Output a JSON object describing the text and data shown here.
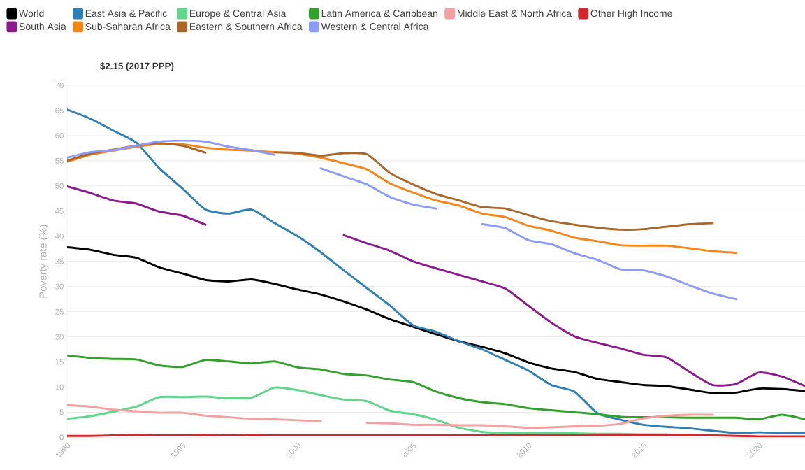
{
  "chart_data": {
    "type": "line",
    "title": "$2.15 (2017 PPP)",
    "ylabel": "Poverty rate (%)",
    "x": [
      1990,
      1991,
      1992,
      1993,
      1994,
      1995,
      1996,
      1997,
      1998,
      1999,
      2000,
      2001,
      2002,
      2003,
      2004,
      2005,
      2006,
      2007,
      2008,
      2009,
      2010,
      2011,
      2012,
      2013,
      2014,
      2015,
      2016,
      2017,
      2018,
      2019,
      2020,
      2021,
      2022
    ],
    "xlim": [
      1990,
      2022
    ],
    "ylim": [
      0,
      70
    ],
    "xticks": [
      1990,
      1995,
      2000,
      2005,
      2010,
      2015,
      2020
    ],
    "yticks": [
      0,
      5,
      10,
      15,
      20,
      25,
      30,
      35,
      40,
      45,
      50,
      55,
      60,
      65,
      70
    ],
    "grid": "y",
    "legend": "top",
    "marker": "none",
    "line_style": "solid",
    "series": [
      {
        "name": "World",
        "color": "#000000",
        "values": [
          37.8,
          37.3,
          36.3,
          35.7,
          33.8,
          32.6,
          31.3,
          31.0,
          31.4,
          30.5,
          29.4,
          28.4,
          27.0,
          25.4,
          23.5,
          22.0,
          20.5,
          19.1,
          18.0,
          16.7,
          14.9,
          13.7,
          13.0,
          11.6,
          11.0,
          10.4,
          10.2,
          9.5,
          8.8,
          8.9,
          9.7,
          9.6,
          9.2
        ]
      },
      {
        "name": "East Asia & Pacific",
        "color": "#2e7fb8",
        "values": [
          65.2,
          63.4,
          61.0,
          58.6,
          53.5,
          49.5,
          45.3,
          44.5,
          45.3,
          42.6,
          40.0,
          36.8,
          33.2,
          29.7,
          26.2,
          22.3,
          21.0,
          19.1,
          17.5,
          15.4,
          13.3,
          10.4,
          9.1,
          4.8,
          3.5,
          2.5,
          2.1,
          1.8,
          1.3,
          0.9,
          1.0,
          0.9,
          0.8
        ]
      },
      {
        "name": "Europe & Central Asia",
        "color": "#5fd68a",
        "values": [
          3.7,
          4.2,
          5.1,
          6.1,
          8.0,
          8.0,
          8.1,
          7.8,
          7.9,
          9.9,
          9.4,
          8.4,
          7.5,
          7.2,
          5.3,
          4.6,
          3.5,
          1.9,
          1.1,
          0.9,
          0.9,
          0.9,
          0.8,
          0.7,
          0.7,
          0.6,
          0.6,
          null,
          null,
          null,
          null,
          null,
          null
        ]
      },
      {
        "name": "Latin America & Caribbean",
        "color": "#33a02c",
        "values": [
          16.3,
          15.8,
          15.6,
          15.5,
          14.3,
          14.0,
          15.4,
          15.1,
          14.7,
          15.1,
          13.9,
          13.5,
          12.6,
          12.3,
          11.5,
          11.0,
          9.1,
          7.8,
          7.0,
          6.6,
          5.8,
          5.4,
          5.0,
          4.6,
          4.1,
          4.0,
          4.0,
          3.9,
          3.9,
          3.9,
          3.6,
          4.5,
          3.6
        ]
      },
      {
        "name": "Middle East & North Africa",
        "color": "#f4a0a0",
        "values": [
          6.4,
          6.1,
          5.5,
          5.2,
          4.9,
          4.9,
          4.3,
          4.0,
          3.7,
          3.6,
          3.4,
          3.2,
          null,
          2.9,
          2.8,
          2.5,
          2.5,
          2.4,
          2.4,
          2.2,
          1.9,
          2.0,
          2.2,
          2.3,
          2.7,
          3.8,
          4.3,
          4.5,
          4.5,
          null,
          null,
          null,
          null
        ]
      },
      {
        "name": "Other High Income",
        "color": "#d62728",
        "values": [
          0.3,
          0.3,
          0.4,
          0.5,
          0.4,
          0.4,
          0.5,
          0.4,
          0.5,
          0.4,
          0.4,
          0.4,
          0.4,
          0.4,
          0.4,
          0.4,
          0.4,
          0.4,
          0.4,
          0.4,
          0.4,
          0.4,
          0.4,
          0.5,
          0.5,
          0.5,
          0.5,
          0.5,
          0.4,
          0.3,
          0.2,
          0.2,
          0.2
        ]
      },
      {
        "name": "South Asia",
        "color": "#8b1a8b",
        "values": [
          49.9,
          48.6,
          47.1,
          46.5,
          44.9,
          44.1,
          42.3,
          null,
          null,
          null,
          null,
          null,
          40.2,
          38.6,
          37.1,
          35.0,
          33.6,
          32.3,
          31.0,
          29.6,
          26.2,
          22.8,
          20.1,
          18.8,
          17.7,
          16.4,
          15.9,
          13.0,
          10.4,
          10.6,
          12.9,
          12.1,
          10.2
        ]
      },
      {
        "name": "Sub-Saharan Africa",
        "color": "#f58518",
        "values": [
          54.8,
          56.2,
          57.0,
          57.8,
          58.3,
          58.3,
          57.6,
          57.2,
          57.0,
          56.7,
          56.4,
          55.6,
          54.5,
          53.3,
          50.5,
          48.7,
          47.1,
          46.1,
          44.5,
          43.8,
          42.1,
          41.1,
          39.7,
          39.0,
          38.2,
          38.1,
          38.1,
          37.6,
          37.0,
          36.7,
          null,
          null,
          null
        ]
      },
      {
        "name": "Eastern & Southern Africa",
        "color": "#a9672a",
        "values": [
          55.0,
          56.4,
          57.2,
          58.0,
          58.5,
          58.0,
          56.6,
          null,
          null,
          56.7,
          56.6,
          56.0,
          56.5,
          56.3,
          52.6,
          50.3,
          48.4,
          47.1,
          45.8,
          45.5,
          44.2,
          43.0,
          42.3,
          41.7,
          41.3,
          41.4,
          41.9,
          42.4,
          42.6,
          null,
          null,
          null,
          null
        ]
      },
      {
        "name": "Western & Central Africa",
        "color": "#8c9cf5",
        "values": [
          55.6,
          56.7,
          57.1,
          58.0,
          58.8,
          59.0,
          58.8,
          57.8,
          57.1,
          56.2,
          null,
          53.5,
          51.9,
          50.3,
          47.8,
          46.3,
          45.5,
          null,
          42.4,
          41.6,
          39.2,
          38.4,
          36.6,
          35.3,
          33.4,
          33.2,
          32.0,
          30.2,
          28.6,
          27.5,
          null,
          null,
          null
        ]
      }
    ]
  }
}
